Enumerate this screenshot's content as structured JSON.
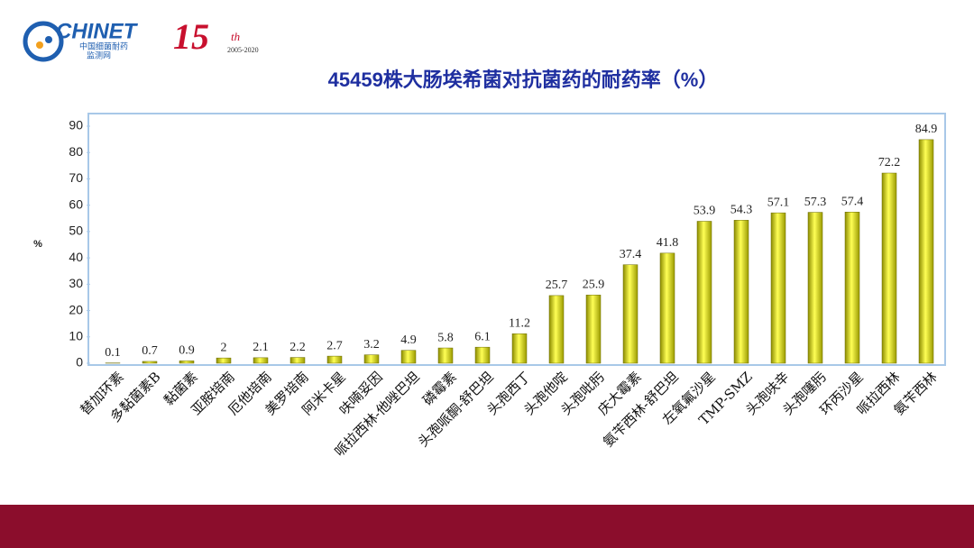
{
  "header": {
    "logo_text": "CHINET",
    "logo_subtitle_1": "中国细菌耐药",
    "logo_subtitle_2": "监测网",
    "anniversary": "15",
    "anniversary_suffix": "th",
    "anniversary_years": "2005-2020"
  },
  "chart_data": {
    "type": "bar",
    "title": "45459株大肠埃希菌对抗菌药的耐药率（%）",
    "y_label": "%",
    "categories": [
      "替加环素",
      "多黏菌素B",
      "黏菌素",
      "亚胺培南",
      "厄他培南",
      "美罗培南",
      "阿米卡星",
      "呋喃妥因",
      "哌拉西林-他唑巴坦",
      "磷霉素",
      "头孢哌酮-舒巴坦",
      "头孢西丁",
      "头孢他啶",
      "头孢吡肟",
      "庆大霉素",
      "氨苄西林-舒巴坦",
      "左氧氟沙星",
      "TMP-SMZ",
      "头孢呋辛",
      "头孢噻肟",
      "环丙沙星",
      "哌拉西林",
      "氨苄西林"
    ],
    "values": [
      0.1,
      0.7,
      0.9,
      2,
      2.1,
      2.2,
      2.7,
      3.2,
      4.9,
      5.8,
      6.1,
      11.2,
      25.7,
      25.9,
      37.4,
      41.8,
      53.9,
      54.3,
      57.1,
      57.3,
      57.4,
      72.2,
      84.9
    ],
    "color": "#e0e000",
    "ylim": [
      0,
      90
    ],
    "yticks": [
      0,
      10,
      20,
      30,
      40,
      50,
      60,
      70,
      80,
      90
    ]
  }
}
